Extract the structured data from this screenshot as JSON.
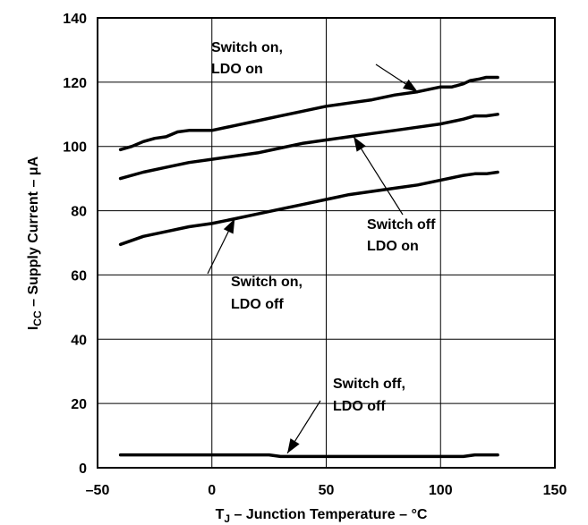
{
  "chart_data": {
    "type": "line",
    "xlabel": "T",
    "xlabel_sub": "J",
    "xlabel_rest": " – Junction Temperature – °C",
    "ylabel": "I",
    "ylabel_sub": "CC",
    "ylabel_rest": " – Supply Current – μA",
    "xlim": [
      -50,
      150
    ],
    "ylim": [
      0,
      140
    ],
    "xticks": [
      "–50",
      "0",
      "50",
      "100",
      "150"
    ],
    "yticks": [
      "0",
      "20",
      "40",
      "60",
      "80",
      "100",
      "120",
      "140"
    ],
    "grid": true,
    "series": [
      {
        "name": "Switch on, LDO on",
        "x": [
          -40,
          -35,
          -30,
          -25,
          -20,
          -15,
          -10,
          -5,
          0,
          10,
          20,
          30,
          40,
          50,
          60,
          70,
          80,
          90,
          100,
          105,
          110,
          113,
          117,
          120,
          125
        ],
        "y": [
          99,
          100,
          101.5,
          102.5,
          103,
          104.5,
          105,
          105,
          105,
          106.5,
          108,
          109.5,
          111,
          112.5,
          113.5,
          114.5,
          116,
          117,
          118.5,
          118.5,
          119.5,
          120.5,
          121,
          121.5,
          121.5
        ]
      },
      {
        "name": "Switch off LDO on",
        "x": [
          -40,
          -30,
          -20,
          -10,
          0,
          10,
          20,
          30,
          40,
          50,
          60,
          70,
          80,
          90,
          100,
          110,
          115,
          120,
          125
        ],
        "y": [
          90,
          92,
          93.5,
          95,
          96,
          97,
          98,
          99.5,
          101,
          102,
          103,
          104,
          105,
          106,
          107,
          108.5,
          109.5,
          109.5,
          110
        ]
      },
      {
        "name": "Switch on, LDO off",
        "x": [
          -40,
          -30,
          -20,
          -10,
          0,
          10,
          20,
          30,
          40,
          50,
          60,
          70,
          80,
          90,
          100,
          110,
          115,
          120,
          125
        ],
        "y": [
          69.5,
          72,
          73.5,
          75,
          76,
          77.5,
          79,
          80.5,
          82,
          83.5,
          85,
          86,
          87,
          88,
          89.5,
          91,
          91.5,
          91.5,
          92
        ]
      },
      {
        "name": "Switch off, LDO off",
        "x": [
          -40,
          0,
          25,
          30,
          50,
          100,
          110,
          115,
          125
        ],
        "y": [
          4,
          4,
          4,
          3.5,
          3.5,
          3.5,
          3.5,
          4,
          4
        ]
      }
    ],
    "annotations": [
      {
        "lines": [
          "Switch on,",
          "LDO on"
        ]
      },
      {
        "lines": [
          "Switch off",
          "LDO on"
        ]
      },
      {
        "lines": [
          "Switch on,",
          "LDO off"
        ]
      },
      {
        "lines": [
          "Switch off,",
          "LDO off"
        ]
      }
    ]
  }
}
